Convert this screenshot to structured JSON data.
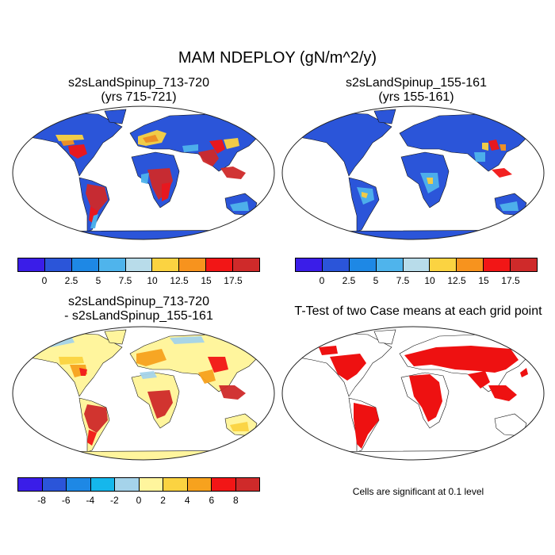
{
  "title": "MAM NDEPLOY (gN/m^2/y)",
  "panels": [
    {
      "line1": "s2sLandSpinup_713-720",
      "line2": "(yrs 715-721)"
    },
    {
      "line1": "s2sLandSpinup_155-161",
      "line2": "(yrs 155-161)"
    },
    {
      "line1": "s2sLandSpinup_713-720",
      "line2": "- s2sLandSpinup_155-161"
    },
    {
      "line1": "T-Test of two Case means at each grid point"
    }
  ],
  "colorbar_abs": {
    "colors": [
      "#3a1de8",
      "#2b55d9",
      "#1e88e5",
      "#4fb4ec",
      "#b8dcea",
      "#fbd341",
      "#f7931e",
      "#f21616",
      "#cf2a2a"
    ],
    "labels": [
      "0",
      "2.5",
      "5",
      "7.5",
      "10",
      "12.5",
      "15",
      "17.5"
    ]
  },
  "colorbar_diff": {
    "colors": [
      "#3a1de8",
      "#2b55d9",
      "#1e88e5",
      "#15b7ec",
      "#a5d3ea",
      "#fff59d",
      "#fbd341",
      "#f7a21e",
      "#f21616",
      "#cf2a2a"
    ],
    "labels": [
      "-8",
      "-6",
      "-4",
      "-2",
      "0",
      "2",
      "4",
      "6",
      "8"
    ]
  },
  "significance_color": "#ee1111",
  "land_base_color_abs": "#2b55d9",
  "land_base_color_diff": "#fff59d",
  "note": "Cells are significant at 0.1 level"
}
